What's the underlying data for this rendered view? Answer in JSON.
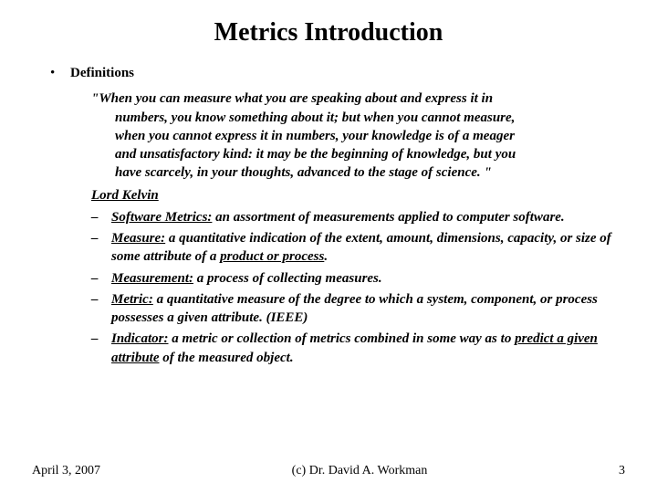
{
  "title": "Metrics Introduction",
  "section": {
    "label": "Definitions"
  },
  "quote": {
    "line1": "\"When you can measure what you are speaking about and express it in",
    "line2": "numbers, you know something about it; but when you cannot measure,",
    "line3": "when you cannot express it in numbers, your knowledge is of a meager",
    "line4": "and unsatisfactory kind: it may be the beginning of knowledge, but you",
    "line5": "have scarcely, in your thoughts, advanced to the stage of science. \"",
    "author": "Lord Kelvin"
  },
  "defs": {
    "d1": {
      "term": "Software Metrics:",
      "rest": " an assortment of measurements applied to computer software."
    },
    "d2": {
      "term": "Measure:",
      "rest1": " a quantitative indication of the extent, amount, dimensions, capacity, or size of some attribute of a ",
      "u": "product or process",
      "rest2": "."
    },
    "d3": {
      "term": "Measurement:",
      "rest": " a process of collecting measures."
    },
    "d4": {
      "term": "Metric:",
      "rest": " a quantitative measure of the degree to which a system, component, or process possesses a given attribute. (IEEE)"
    },
    "d5": {
      "term": "Indicator:",
      "rest1": " a metric or collection of metrics combined in some way as to ",
      "u": "predict a given attribute",
      "rest2": " of the measured object."
    }
  },
  "footer": {
    "date": "April 3, 2007",
    "copyright": "(c) Dr. David A. Workman",
    "page": "3"
  },
  "style": {
    "title_fontsize": 28,
    "body_fontsize": 15,
    "footer_fontsize": 14,
    "text_color": "#000000",
    "bg_color": "#ffffff",
    "font_family": "Times New Roman"
  }
}
